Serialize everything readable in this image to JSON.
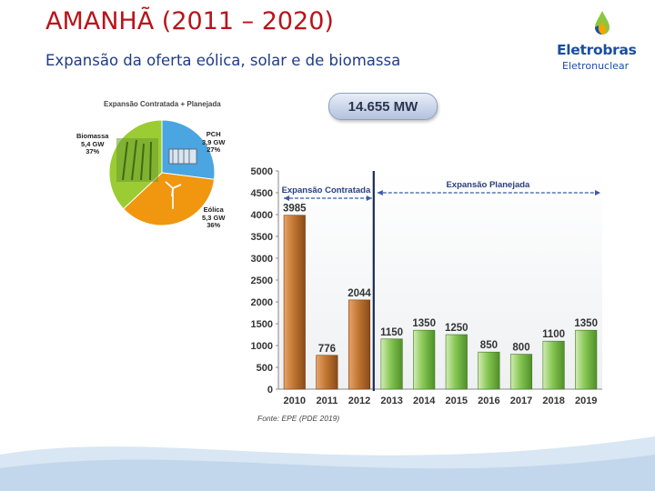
{
  "slide": {
    "title": "AMANHÃ (2011 – 2020)",
    "subtitle": "Expansão da oferta eólica, solar  e de biomassa"
  },
  "logo": {
    "name": "Eletrobras",
    "subtitle": "Eletronuclear",
    "colors": [
      "#1a4ea0",
      "#8cc63f",
      "#f5a400"
    ]
  },
  "pie": {
    "title": "Expansão Contratada + Planejada",
    "slices": [
      {
        "label": "PCH",
        "value_text": "3,9 GW",
        "percent_text": "27%",
        "percent": 27,
        "color": "#4aa5e0"
      },
      {
        "label": "Eólica",
        "value_text": "5,3 GW",
        "percent_text": "36%",
        "percent": 36,
        "color": "#f0960f"
      },
      {
        "label": "Biomassa",
        "value_text": "5,4 GW",
        "percent_text": "37%",
        "percent": 37,
        "color": "#9bcc33"
      }
    ]
  },
  "total_badge": "14.655 MW",
  "source_text": "Fonte: EPE (PDE 2019)",
  "chart_data": {
    "type": "bar",
    "categories": [
      "2010",
      "2011",
      "2012",
      "2013",
      "2014",
      "2015",
      "2016",
      "2017",
      "2018",
      "2019"
    ],
    "values": [
      3985,
      776,
      2044,
      1150,
      1350,
      1250,
      850,
      800,
      1100,
      1350
    ],
    "value_labels": [
      "3985",
      "776",
      "2044",
      "1150",
      "1350",
      "1250",
      "850",
      "800",
      "1100",
      "1350"
    ],
    "group": [
      "contratada",
      "contratada",
      "contratada",
      "planejada",
      "planejada",
      "planejada",
      "planejada",
      "planejada",
      "planejada",
      "planejada"
    ],
    "yticks": [
      "0",
      "500",
      "1000",
      "1500",
      "2000",
      "2500",
      "3000",
      "3500",
      "4000",
      "4500",
      "5000"
    ],
    "ylim": [
      0,
      5000
    ],
    "grid": false,
    "annotations": {
      "contratada": "Expansão Contratada",
      "planejada": "Expansão Planejada"
    },
    "colors": {
      "contratada": "#b86a2a",
      "planejada": "#7cc04a"
    }
  }
}
